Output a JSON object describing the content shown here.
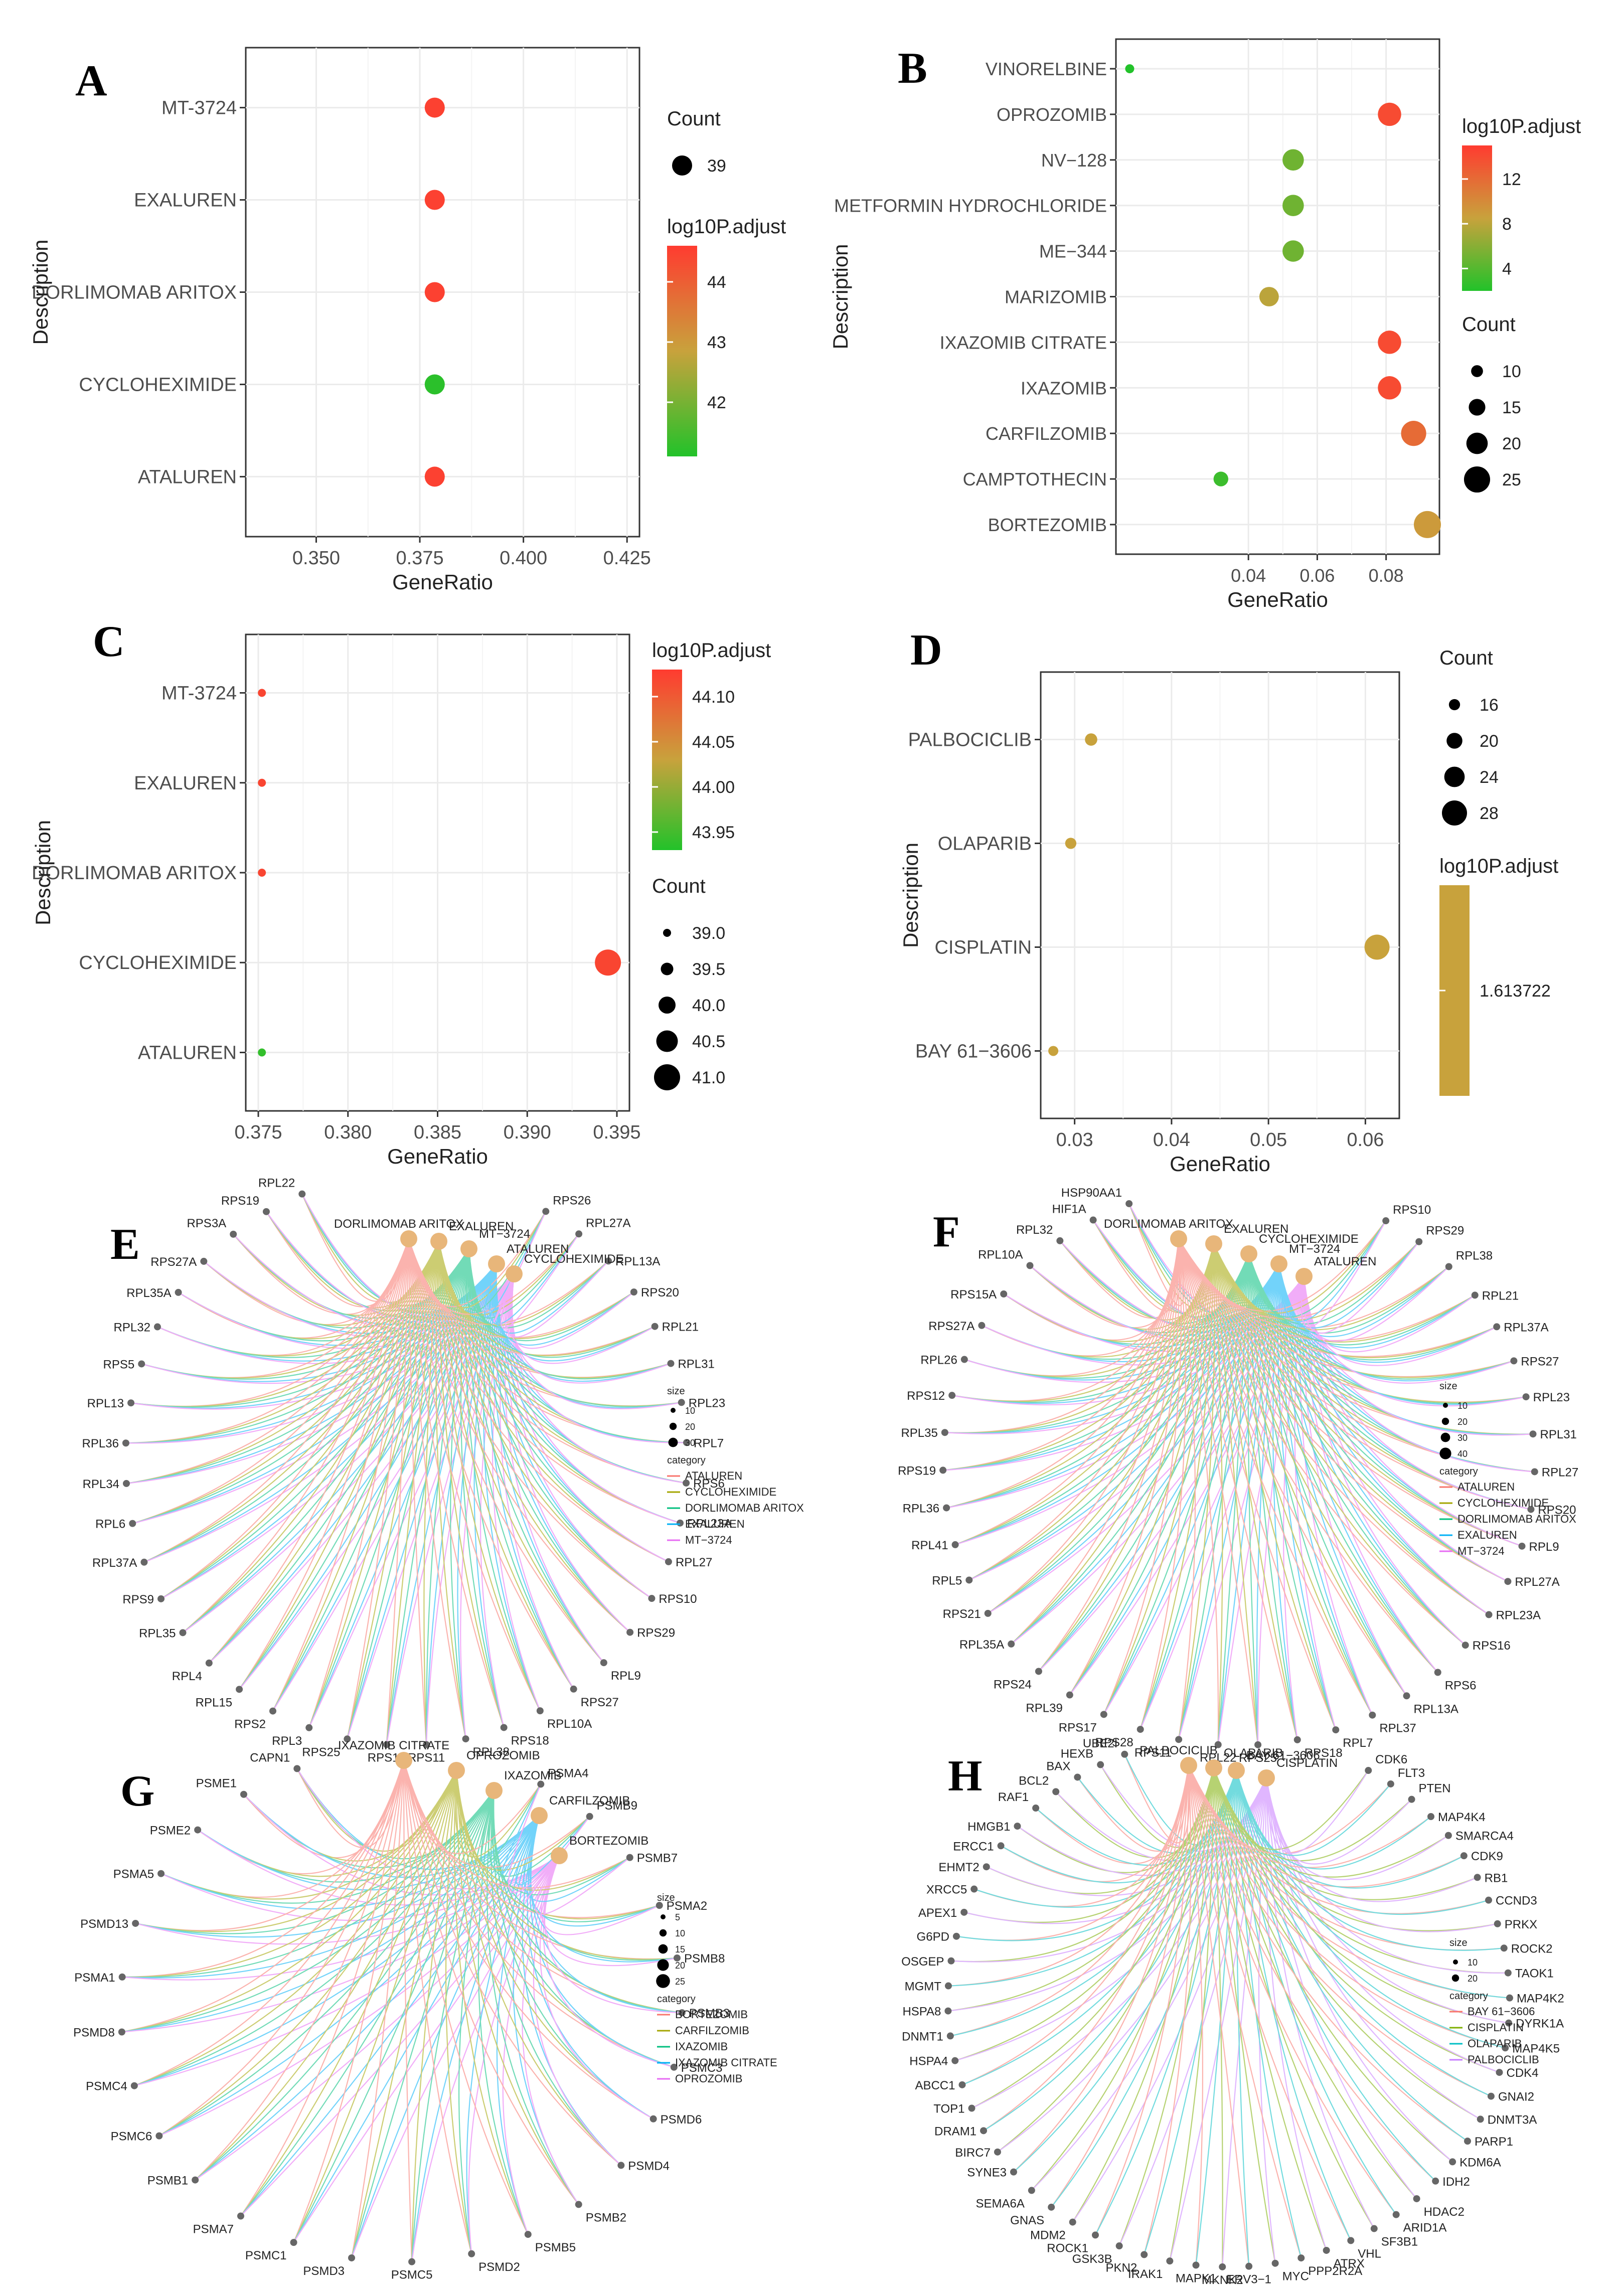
{
  "colors": {
    "low": "#22c22a",
    "mid": "#c8a23c",
    "high": "#ff3b30",
    "node": "#e8b67a",
    "gene": "#666666"
  },
  "chart_data": [
    {
      "id": "A",
      "type": "scatter",
      "panel_label": "A",
      "xlabel": "GeneRatio",
      "ylabel": "Description",
      "xlim": [
        0.333,
        0.428
      ],
      "xticks": [
        0.35,
        0.375,
        0.4,
        0.425
      ],
      "xtick_labels": [
        "0.350",
        "0.375",
        "0.400",
        "0.425"
      ],
      "categories": [
        "MT-3724",
        "EXALUREN",
        "DORLIMOMAB ARITOX",
        "CYCLOHEXIMIDE",
        "ATALUREN"
      ],
      "points": [
        {
          "y": "MT-3724",
          "x": 0.3786,
          "count": 39,
          "p": 44.5
        },
        {
          "y": "EXALUREN",
          "x": 0.3786,
          "count": 39,
          "p": 44.5
        },
        {
          "y": "DORLIMOMAB ARITOX",
          "x": 0.3786,
          "count": 39,
          "p": 44.5
        },
        {
          "y": "CYCLOHEXIMIDE",
          "x": 0.3786,
          "count": 39,
          "p": 41.2
        },
        {
          "y": "ATALUREN",
          "x": 0.3786,
          "count": 39,
          "p": 44.5
        }
      ],
      "color_range": [
        41.1,
        44.6
      ],
      "legend_count": {
        "title": "Count",
        "values": [
          39
        ]
      },
      "legend_color": {
        "title": "log10P.adjust",
        "ticks": [
          44,
          43,
          42
        ]
      }
    },
    {
      "id": "B",
      "type": "scatter",
      "panel_label": "B",
      "xlabel": "GeneRatio",
      "ylabel": "Description",
      "xlim": [
        0.0015,
        0.0955
      ],
      "xticks": [
        0.04,
        0.06,
        0.08
      ],
      "xtick_labels": [
        "0.04",
        "0.06",
        "0.08"
      ],
      "categories": [
        "VINORELBINE",
        "OPROZOMIB",
        "NV−128",
        "METFORMIN HYDROCHLORIDE",
        "ME−344",
        "MARIZOMIB",
        "IXAZOMIB CITRATE",
        "IXAZOMIB",
        "CARFILZOMIB",
        "CAMPTOTHECIN",
        "BORTEZOMIB"
      ],
      "points": [
        {
          "y": "VINORELBINE",
          "x": 0.0055,
          "count": 7,
          "p": 2
        },
        {
          "y": "OPROZOMIB",
          "x": 0.081,
          "count": 22,
          "p": 14
        },
        {
          "y": "NV−128",
          "x": 0.053,
          "count": 20,
          "p": 5
        },
        {
          "y": "METFORMIN HYDROCHLORIDE",
          "x": 0.053,
          "count": 20,
          "p": 5
        },
        {
          "y": "ME−344",
          "x": 0.053,
          "count": 20,
          "p": 5
        },
        {
          "y": "MARIZOMIB",
          "x": 0.046,
          "count": 18,
          "p": 8
        },
        {
          "y": "IXAZOMIB CITRATE",
          "x": 0.081,
          "count": 22,
          "p": 14
        },
        {
          "y": "IXAZOMIB",
          "x": 0.081,
          "count": 22,
          "p": 14
        },
        {
          "y": "CARFILZOMIB",
          "x": 0.088,
          "count": 24,
          "p": 12
        },
        {
          "y": "CAMPTOTHECIN",
          "x": 0.032,
          "count": 13,
          "p": 3
        },
        {
          "y": "BORTEZOMIB",
          "x": 0.092,
          "count": 26,
          "p": 9
        }
      ],
      "color_range": [
        2,
        15
      ],
      "legend_count": {
        "title": "Count",
        "values": [
          10,
          15,
          20,
          25
        ]
      },
      "legend_color": {
        "title": "log10P.adjust",
        "ticks": [
          12,
          8,
          4
        ]
      }
    },
    {
      "id": "C",
      "type": "scatter",
      "panel_label": "C",
      "xlabel": "GeneRatio",
      "ylabel": "Description",
      "xlim": [
        0.3743,
        0.3957
      ],
      "xticks": [
        0.375,
        0.38,
        0.385,
        0.39,
        0.395
      ],
      "xtick_labels": [
        "0.375",
        "0.380",
        "0.385",
        "0.390",
        "0.395"
      ],
      "categories": [
        "MT-3724",
        "EXALUREN",
        "DORLIMOMAB ARITOX",
        "CYCLOHEXIMIDE",
        "ATALUREN"
      ],
      "points": [
        {
          "y": "MT-3724",
          "x": 0.3752,
          "count": 39,
          "p": 44.12
        },
        {
          "y": "EXALUREN",
          "x": 0.3752,
          "count": 39,
          "p": 44.12
        },
        {
          "y": "DORLIMOMAB ARITOX",
          "x": 0.3752,
          "count": 39,
          "p": 44.12
        },
        {
          "y": "CYCLOHEXIMIDE",
          "x": 0.3945,
          "count": 41,
          "p": 44.12
        },
        {
          "y": "ATALUREN",
          "x": 0.3752,
          "count": 39,
          "p": 43.94
        }
      ],
      "color_range": [
        43.93,
        44.13
      ],
      "legend_count": {
        "title": "Count",
        "values": [
          "39.0",
          "39.5",
          "40.0",
          "40.5",
          "41.0"
        ]
      },
      "legend_color": {
        "title": "log10P.adjust",
        "ticks": [
          "44.10",
          "44.05",
          "44.00",
          "43.95"
        ]
      }
    },
    {
      "id": "D",
      "type": "scatter",
      "panel_label": "D",
      "xlabel": "GeneRatio",
      "ylabel": "Description",
      "xlim": [
        0.0265,
        0.0635
      ],
      "xticks": [
        0.03,
        0.04,
        0.05,
        0.06
      ],
      "xtick_labels": [
        "0.03",
        "0.04",
        "0.05",
        "0.06"
      ],
      "categories": [
        "PALBOCICLIB",
        "OLAPARIB",
        "CISPLATIN",
        "BAY 61−3606"
      ],
      "points": [
        {
          "y": "PALBOCICLIB",
          "x": 0.0317,
          "count": 17,
          "p": 1.613722
        },
        {
          "y": "OLAPARIB",
          "x": 0.0296,
          "count": 16,
          "p": 1.613722
        },
        {
          "y": "CISPLATIN",
          "x": 0.0612,
          "count": 28,
          "p": 1.613722
        },
        {
          "y": "BAY 61−3606",
          "x": 0.0278,
          "count": 15,
          "p": 1.613722
        }
      ],
      "color_range": [
        1.613722,
        1.613722
      ],
      "legend_count": {
        "title": "Count",
        "values": [
          16,
          20,
          24,
          28
        ]
      },
      "legend_color": {
        "title": "log10P.adjust",
        "ticks": [
          "1.613722"
        ]
      }
    }
  ],
  "networks": [
    {
      "id": "E",
      "panel_label": "E",
      "drugs": [
        "DORLIMOMAB ARITOX",
        "EXALUREN",
        "MT−3724",
        "ATALUREN",
        "CYCLOHEXIMIDE"
      ],
      "genes": [
        "RPL22",
        "RPS19",
        "RPS3A",
        "RPS27A",
        "RPL35A",
        "RPL32",
        "RPS5",
        "RPL13",
        "RPL36",
        "RPL34",
        "RPL6",
        "RPL37A",
        "RPS9",
        "RPL35",
        "RPL4",
        "RPL15",
        "RPS2",
        "RPL3",
        "RPS25",
        "RPS16",
        "RPS11",
        "RPL38",
        "RPS18",
        "RPL10A",
        "RPS27",
        "RPL9",
        "RPS29",
        "RPS10",
        "RPL27",
        "RPL23A",
        "RPS6",
        "RPL7",
        "RPL23",
        "RPL31",
        "RPL21",
        "RPS20",
        "RPL13A",
        "RPL27A",
        "RPS26"
      ],
      "legend_size": {
        "title": "size",
        "values": [
          10,
          20,
          30
        ]
      },
      "legend_category": {
        "title": "category",
        "items": [
          "ATALUREN",
          "CYCLOHEXIMIDE",
          "DORLIMOMAB ARITOX",
          "EXALUREN",
          "MT−3724"
        ]
      }
    },
    {
      "id": "F",
      "panel_label": "F",
      "drugs": [
        "DORLIMOMAB ARITOX",
        "EXALUREN",
        "CYCLOHEXIMIDE",
        "MT−3724",
        "ATALUREN"
      ],
      "genes": [
        "HSP90AA1",
        "HIF1A",
        "RPL32",
        "RPL10A",
        "RPS15A",
        "RPS27A",
        "RPL26",
        "RPS12",
        "RPL35",
        "RPS19",
        "RPL36",
        "RPL41",
        "RPL5",
        "RPS21",
        "RPL35A",
        "RPS24",
        "RPL39",
        "RPS17",
        "RPS28",
        "RPS11",
        "RPL22",
        "RPS25",
        "RPS18",
        "RPL7",
        "RPL37",
        "RPL13A",
        "RPS6",
        "RPS16",
        "RPL23A",
        "RPL27A",
        "RPL9",
        "RPS20",
        "RPL27",
        "RPL31",
        "RPL23",
        "RPS27",
        "RPL37A",
        "RPL21",
        "RPL38",
        "RPS29",
        "RPS10"
      ],
      "legend_size": {
        "title": "size",
        "values": [
          10,
          20,
          30,
          40
        ]
      },
      "legend_category": {
        "title": "category",
        "items": [
          "ATALUREN",
          "CYCLOHEXIMIDE",
          "DORLIMOMAB ARITOX",
          "EXALUREN",
          "MT−3724"
        ]
      }
    },
    {
      "id": "G",
      "panel_label": "G",
      "drugs": [
        "IXAZOMIB CITRATE",
        "OPROZOMIB",
        "IXAZOMIB",
        "CARFILZOMIB",
        "BORTEZOMIB"
      ],
      "genes": [
        "CAPN1",
        "PSME1",
        "PSME2",
        "PSMA5",
        "PSMD13",
        "PSMA1",
        "PSMD8",
        "PSMC4",
        "PSMC6",
        "PSMB1",
        "PSMA7",
        "PSMC1",
        "PSMD3",
        "PSMC5",
        "PSMD2",
        "PSMB5",
        "PSMB2",
        "PSMD4",
        "PSMD6",
        "PSMC3",
        "PSMB3",
        "PSMB8",
        "PSMA2",
        "PSMB7",
        "PSMB9",
        "PSMA4"
      ],
      "legend_size": {
        "title": "size",
        "values": [
          5,
          10,
          15,
          20,
          25
        ]
      },
      "legend_category": {
        "title": "category",
        "items": [
          "BORTEZOMIB",
          "CARFILZOMIB",
          "IXAZOMIB",
          "IXAZOMIB CITRATE",
          "OPROZOMIB"
        ]
      }
    },
    {
      "id": "H",
      "panel_label": "H",
      "drugs": [
        "PALBOCICLIB",
        "OLAPARIB",
        "BAY 61−3606",
        "CISPLATIN"
      ],
      "genes": [
        "UBE2I",
        "HEXB",
        "BAX",
        "BCL2",
        "RAF1",
        "HMGB1",
        "ERCC1",
        "EHMT2",
        "XRCC5",
        "APEX1",
        "G6PD",
        "OSGEP",
        "MGMT",
        "HSPA8",
        "DNMT1",
        "HSPA4",
        "ABCC1",
        "TOP1",
        "DRAM1",
        "BIRC7",
        "SYNE3",
        "SEMA6A",
        "GNAS",
        "MDM2",
        "ROCK1",
        "GSK3B",
        "PKN2",
        "IRAK1",
        "MAPK1",
        "MKNK2",
        "ERV3−1",
        "MYC",
        "PPP2R2A",
        "ATRX",
        "VHL",
        "SF3B1",
        "ARID1A",
        "HDAC2",
        "IDH2",
        "KDM6A",
        "PARP1",
        "DNMT3A",
        "GNAI2",
        "CDK4",
        "MAP4K5",
        "DYRK1A",
        "MAP4K2",
        "TAOK1",
        "ROCK2",
        "PRKX",
        "CCND3",
        "RB1",
        "CDK9",
        "SMARCA4",
        "MAP4K4",
        "PTEN",
        "FLT3",
        "CDK6"
      ],
      "legend_size": {
        "title": "size",
        "values": [
          10,
          20
        ]
      },
      "legend_category": {
        "title": "category",
        "items": [
          "BAY 61−3606",
          "CISPLATIN",
          "OLAPARIB",
          "PALBOCICLIB"
        ]
      }
    }
  ]
}
